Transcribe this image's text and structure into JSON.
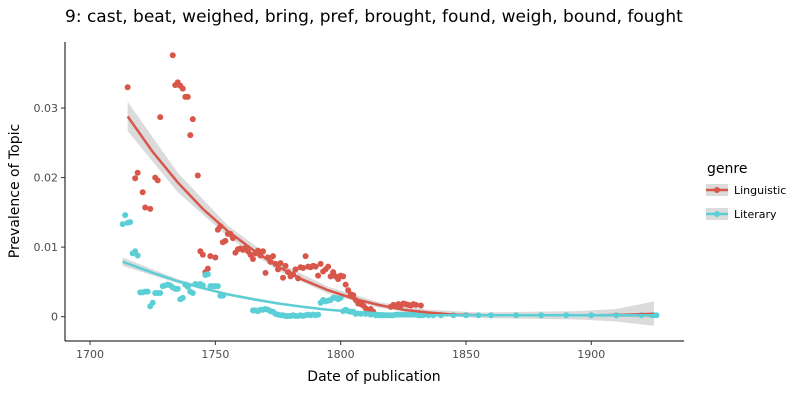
{
  "chart_data": {
    "type": "scatter",
    "title": "9: cast, beat, weighed, bring, pref, brought, found, weigh, bound, fought",
    "xlabel": "Date of publication",
    "ylabel": "Prevalence of Topic",
    "xlim": [
      1690,
      1937
    ],
    "ylim": [
      -0.0035,
      0.0395
    ],
    "x_ticks": [
      1700,
      1750,
      1800,
      1850,
      1900
    ],
    "y_ticks": [
      0,
      0.01,
      0.02,
      0.03
    ],
    "y_tick_labels": [
      "0",
      "0.01",
      "0.02",
      "0.03"
    ],
    "grid": false,
    "legend": {
      "title": "genre",
      "position": "right"
    },
    "series": [
      {
        "name": "Linguistic",
        "color": "#d8564a",
        "points": [
          [
            1715,
            0.033
          ],
          [
            1718,
            0.0199
          ],
          [
            1719,
            0.0207
          ],
          [
            1721,
            0.0179
          ],
          [
            1722,
            0.0157
          ],
          [
            1724,
            0.0155
          ],
          [
            1726,
            0.02
          ],
          [
            1727,
            0.0196
          ],
          [
            1728,
            0.0287
          ],
          [
            1733,
            0.0376
          ],
          [
            1734,
            0.0333
          ],
          [
            1735,
            0.0337
          ],
          [
            1736,
            0.0332
          ],
          [
            1737,
            0.0328
          ],
          [
            1738,
            0.0316
          ],
          [
            1739,
            0.0316
          ],
          [
            1740,
            0.0261
          ],
          [
            1741,
            0.0284
          ],
          [
            1743,
            0.0203
          ],
          [
            1744,
            0.0094
          ],
          [
            1745,
            0.0089
          ],
          [
            1746,
            0.0064
          ],
          [
            1747,
            0.0069
          ],
          [
            1748,
            0.0087
          ],
          [
            1750,
            0.0085
          ],
          [
            1751,
            0.0125
          ],
          [
            1752,
            0.013
          ],
          [
            1753,
            0.0107
          ],
          [
            1754,
            0.0109
          ],
          [
            1755,
            0.0119
          ],
          [
            1756,
            0.0119
          ],
          [
            1757,
            0.0113
          ],
          [
            1758,
            0.0092
          ],
          [
            1759,
            0.0097
          ],
          [
            1760,
            0.0098
          ],
          [
            1761,
            0.0096
          ],
          [
            1762,
            0.0099
          ],
          [
            1763,
            0.0094
          ],
          [
            1764,
            0.0089
          ],
          [
            1765,
            0.0083
          ],
          [
            1766,
            0.0091
          ],
          [
            1767,
            0.0095
          ],
          [
            1768,
            0.0088
          ],
          [
            1769,
            0.0094
          ],
          [
            1770,
            0.0063
          ],
          [
            1771,
            0.0085
          ],
          [
            1772,
            0.0079
          ],
          [
            1773,
            0.0087
          ],
          [
            1774,
            0.0076
          ],
          [
            1775,
            0.0068
          ],
          [
            1776,
            0.0077
          ],
          [
            1777,
            0.0056
          ],
          [
            1778,
            0.0073
          ],
          [
            1779,
            0.0064
          ],
          [
            1780,
            0.0058
          ],
          [
            1781,
            0.0061
          ],
          [
            1782,
            0.0068
          ],
          [
            1783,
            0.0055
          ],
          [
            1784,
            0.0071
          ],
          [
            1785,
            0.007
          ],
          [
            1786,
            0.0087
          ],
          [
            1787,
            0.0072
          ],
          [
            1788,
            0.0071
          ],
          [
            1789,
            0.0073
          ],
          [
            1790,
            0.0072
          ],
          [
            1791,
            0.0059
          ],
          [
            1792,
            0.0076
          ],
          [
            1793,
            0.0065
          ],
          [
            1794,
            0.0068
          ],
          [
            1795,
            0.0072
          ],
          [
            1796,
            0.0058
          ],
          [
            1797,
            0.0064
          ],
          [
            1798,
            0.0058
          ],
          [
            1799,
            0.0054
          ],
          [
            1800,
            0.0059
          ],
          [
            1801,
            0.0058
          ],
          [
            1802,
            0.0046
          ],
          [
            1803,
            0.0038
          ],
          [
            1804,
            0.0032
          ],
          [
            1805,
            0.0031
          ],
          [
            1806,
            0.0024
          ],
          [
            1807,
            0.0019
          ],
          [
            1808,
            0.0018
          ],
          [
            1809,
            0.0016
          ],
          [
            1810,
            0.0012
          ],
          [
            1811,
            0.0009
          ],
          [
            1812,
            0.0011
          ],
          [
            1813,
            0.0007
          ],
          [
            1820,
            0.0014
          ],
          [
            1821,
            0.0017
          ],
          [
            1822,
            0.0016
          ],
          [
            1823,
            0.0018
          ],
          [
            1824,
            0.0016
          ],
          [
            1825,
            0.0019
          ],
          [
            1826,
            0.0018
          ],
          [
            1827,
            0.0017
          ],
          [
            1828,
            0.0016
          ],
          [
            1829,
            0.0018
          ],
          [
            1830,
            0.0017
          ],
          [
            1832,
            0.0016
          ]
        ],
        "fit": [
          [
            1715,
            0.0288
          ],
          [
            1725,
            0.0237
          ],
          [
            1735,
            0.0193
          ],
          [
            1745,
            0.0155
          ],
          [
            1755,
            0.0123
          ],
          [
            1765,
            0.0096
          ],
          [
            1775,
            0.0072
          ],
          [
            1785,
            0.0053
          ],
          [
            1795,
            0.0038
          ],
          [
            1805,
            0.0026
          ],
          [
            1815,
            0.0017
          ],
          [
            1825,
            0.001
          ],
          [
            1835,
            0.0006
          ],
          [
            1845,
            0.0003
          ],
          [
            1855,
            0.0002
          ],
          [
            1865,
            0.0002
          ],
          [
            1875,
            0.0002
          ],
          [
            1885,
            0.0002
          ],
          [
            1895,
            0.0002
          ],
          [
            1905,
            0.0002
          ],
          [
            1915,
            0.0003
          ],
          [
            1925,
            0.0004
          ]
        ],
        "fit_band": [
          [
            1715,
            0.0267,
            0.0309
          ],
          [
            1735,
            0.0179,
            0.0207
          ],
          [
            1755,
            0.0115,
            0.0131
          ],
          [
            1775,
            0.0066,
            0.0078
          ],
          [
            1795,
            0.0033,
            0.0043
          ],
          [
            1815,
            0.0013,
            0.0021
          ],
          [
            1835,
            0.0002,
            0.001
          ],
          [
            1855,
            -0.0002,
            0.0006
          ],
          [
            1875,
            -0.0003,
            0.0007
          ],
          [
            1895,
            -0.0004,
            0.0008
          ],
          [
            1910,
            -0.0007,
            0.0011
          ],
          [
            1925,
            -0.0013,
            0.0022
          ]
        ]
      },
      {
        "name": "Literary",
        "color": "#5ccfd6",
        "points": [
          [
            1713,
            0.0133
          ],
          [
            1714,
            0.0146
          ],
          [
            1715,
            0.0135
          ],
          [
            1716,
            0.0136
          ],
          [
            1717,
            0.0091
          ],
          [
            1718,
            0.0094
          ],
          [
            1719,
            0.0088
          ],
          [
            1720,
            0.0035
          ],
          [
            1721,
            0.0035
          ],
          [
            1722,
            0.0036
          ],
          [
            1723,
            0.0036
          ],
          [
            1724,
            0.0015
          ],
          [
            1725,
            0.002
          ],
          [
            1726,
            0.0034
          ],
          [
            1727,
            0.0034
          ],
          [
            1728,
            0.0034
          ],
          [
            1729,
            0.0044
          ],
          [
            1730,
            0.0045
          ],
          [
            1731,
            0.0046
          ],
          [
            1732,
            0.0045
          ],
          [
            1733,
            0.0042
          ],
          [
            1734,
            0.004
          ],
          [
            1735,
            0.004
          ],
          [
            1736,
            0.0025
          ],
          [
            1737,
            0.0027
          ],
          [
            1738,
            0.0046
          ],
          [
            1739,
            0.0043
          ],
          [
            1740,
            0.0036
          ],
          [
            1741,
            0.0034
          ],
          [
            1742,
            0.0047
          ],
          [
            1743,
            0.0046
          ],
          [
            1744,
            0.0047
          ],
          [
            1745,
            0.0045
          ],
          [
            1746,
            0.006
          ],
          [
            1747,
            0.0061
          ],
          [
            1748,
            0.0044
          ],
          [
            1749,
            0.0044
          ],
          [
            1750,
            0.0044
          ],
          [
            1751,
            0.0044
          ],
          [
            1752,
            0.003
          ],
          [
            1753,
            0.003
          ],
          [
            1765,
            0.0009
          ],
          [
            1766,
            0.0009
          ],
          [
            1767,
            0.0008
          ],
          [
            1768,
            0.001
          ],
          [
            1769,
            0.001
          ],
          [
            1770,
            0.0011
          ],
          [
            1771,
            0.001
          ],
          [
            1772,
            0.0008
          ],
          [
            1773,
            0.0007
          ],
          [
            1774,
            0.0004
          ],
          [
            1775,
            0.0003
          ],
          [
            1776,
            0.0002
          ],
          [
            1777,
            0.0002
          ],
          [
            1778,
            0.0001
          ],
          [
            1779,
            0.0001
          ],
          [
            1780,
            0.0001
          ],
          [
            1781,
            0.0002
          ],
          [
            1782,
            0.0001
          ],
          [
            1783,
            0.0001
          ],
          [
            1784,
            0.0002
          ],
          [
            1785,
            0.0001
          ],
          [
            1786,
            0.0002
          ],
          [
            1787,
            0.0003
          ],
          [
            1788,
            0.0002
          ],
          [
            1789,
            0.0003
          ],
          [
            1790,
            0.0002
          ],
          [
            1791,
            0.0003
          ],
          [
            1792,
            0.002
          ],
          [
            1793,
            0.0024
          ],
          [
            1794,
            0.0022
          ],
          [
            1795,
            0.0023
          ],
          [
            1796,
            0.0024
          ],
          [
            1797,
            0.0027
          ],
          [
            1798,
            0.0027
          ],
          [
            1799,
            0.0025
          ],
          [
            1800,
            0.0027
          ],
          [
            1801,
            0.0008
          ],
          [
            1802,
            0.001
          ],
          [
            1803,
            0.0008
          ],
          [
            1804,
            0.0007
          ],
          [
            1805,
            0.0007
          ],
          [
            1806,
            0.0004
          ],
          [
            1808,
            0.0004
          ],
          [
            1810,
            0.0004
          ],
          [
            1812,
            0.0003
          ],
          [
            1814,
            0.0002
          ],
          [
            1815,
            0.0002
          ],
          [
            1816,
            0.0002
          ],
          [
            1817,
            0.0002
          ],
          [
            1818,
            0.0002
          ],
          [
            1819,
            0.0002
          ],
          [
            1820,
            0.0002
          ],
          [
            1821,
            0.0002
          ],
          [
            1822,
            0.0003
          ],
          [
            1823,
            0.0003
          ],
          [
            1824,
            0.0003
          ],
          [
            1825,
            0.0003
          ],
          [
            1826,
            0.0003
          ],
          [
            1827,
            0.0003
          ],
          [
            1828,
            0.0003
          ],
          [
            1829,
            0.0003
          ],
          [
            1830,
            0.0003
          ],
          [
            1831,
            0.0002
          ],
          [
            1832,
            0.0002
          ],
          [
            1833,
            0.0002
          ],
          [
            1835,
            0.0002
          ],
          [
            1837,
            0.0002
          ],
          [
            1840,
            0.0002
          ],
          [
            1845,
            0.0002
          ],
          [
            1850,
            0.0002
          ],
          [
            1855,
            0.0002
          ],
          [
            1860,
            0.0002
          ],
          [
            1870,
            0.0002
          ],
          [
            1880,
            0.0002
          ],
          [
            1890,
            0.0002
          ],
          [
            1900,
            0.0002
          ],
          [
            1910,
            0.0002
          ],
          [
            1920,
            0.0002
          ],
          [
            1924,
            0.0002
          ],
          [
            1925,
            0.0002
          ],
          [
            1926,
            0.0002
          ]
        ],
        "fit": [
          [
            1713,
            0.0079
          ],
          [
            1725,
            0.0063
          ],
          [
            1735,
            0.0051
          ],
          [
            1745,
            0.0041
          ],
          [
            1755,
            0.0032
          ],
          [
            1765,
            0.0025
          ],
          [
            1775,
            0.0019
          ],
          [
            1785,
            0.0014
          ],
          [
            1795,
            0.001
          ],
          [
            1805,
            0.0007
          ],
          [
            1815,
            0.0005
          ],
          [
            1825,
            0.0003
          ],
          [
            1835,
            0.0002
          ],
          [
            1850,
            0.0002
          ],
          [
            1870,
            0.0002
          ],
          [
            1890,
            0.0002
          ],
          [
            1910,
            0.0002
          ],
          [
            1926,
            0.0002
          ]
        ],
        "fit_band": [
          [
            1713,
            0.0073,
            0.0085
          ],
          [
            1735,
            0.0048,
            0.0054
          ],
          [
            1755,
            0.003,
            0.0034
          ],
          [
            1775,
            0.0017,
            0.0021
          ],
          [
            1795,
            0.0009,
            0.0011
          ],
          [
            1815,
            0.0004,
            0.0006
          ],
          [
            1835,
            0.0001,
            0.0003
          ],
          [
            1870,
            0.0001,
            0.0003
          ],
          [
            1900,
            0.0,
            0.0004
          ],
          [
            1926,
            -0.0001,
            0.0005
          ]
        ]
      }
    ]
  }
}
